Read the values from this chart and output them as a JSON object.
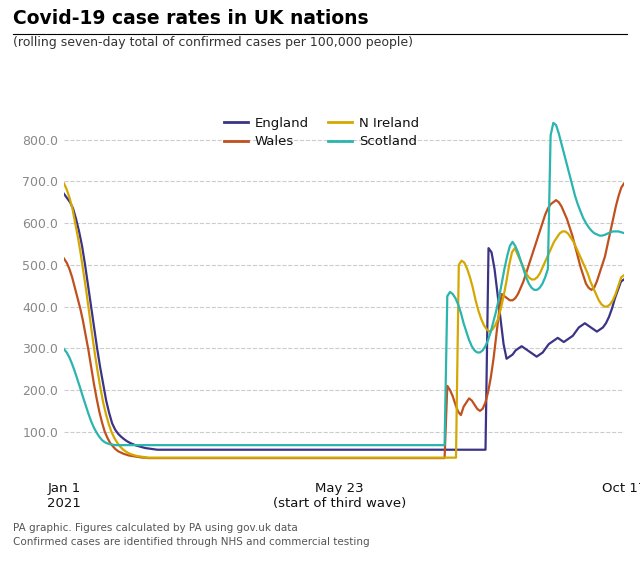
{
  "title": "Covid-19 case rates in UK nations",
  "subtitle": "(rolling seven-day total of confirmed cases per 100,000 people)",
  "footnote1": "PA graphic. Figures calculated by PA using gov.uk data",
  "footnote2": "Confirmed cases are identified through NHS and commercial testing",
  "ylim": [
    0,
    870
  ],
  "yticks": [
    100.0,
    200.0,
    300.0,
    400.0,
    500.0,
    600.0,
    700.0,
    800.0
  ],
  "colors": {
    "England": "#3b3486",
    "Wales": "#c0511e",
    "N Ireland": "#d4a800",
    "Scotland": "#2ab5ae"
  },
  "background": "#ffffff",
  "grid_color": "#cccccc",
  "england": [
    670,
    660,
    650,
    635,
    610,
    580,
    545,
    500,
    450,
    400,
    350,
    300,
    255,
    215,
    175,
    145,
    120,
    105,
    95,
    88,
    82,
    77,
    73,
    70,
    67,
    65,
    63,
    61,
    60,
    59,
    58,
    57,
    57,
    57,
    57,
    57,
    57,
    57,
    57,
    57,
    57,
    57,
    57,
    57,
    57,
    57,
    57,
    57,
    57,
    57,
    57,
    57,
    57,
    57,
    57,
    57,
    57,
    57,
    57,
    57,
    57,
    57,
    57,
    57,
    57,
    57,
    57,
    57,
    57,
    57,
    57,
    57,
    57,
    57,
    57,
    57,
    57,
    57,
    57,
    57,
    57,
    57,
    57,
    57,
    57,
    57,
    57,
    57,
    57,
    57,
    57,
    57,
    57,
    57,
    57,
    57,
    57,
    57,
    57,
    57,
    57,
    57,
    57,
    57,
    57,
    57,
    57,
    57,
    57,
    57,
    57,
    57,
    57,
    57,
    57,
    57,
    57,
    57,
    57,
    57,
    57,
    57,
    57,
    57,
    57,
    57,
    57,
    57,
    57,
    57,
    57,
    57,
    57,
    57,
    57,
    57,
    57,
    57,
    57,
    57,
    57,
    540,
    530,
    490,
    430,
    370,
    310,
    275,
    280,
    285,
    295,
    300,
    305,
    300,
    295,
    290,
    285,
    280,
    285,
    290,
    300,
    310,
    315,
    320,
    325,
    320,
    315,
    320,
    325,
    330,
    340,
    350,
    355,
    360,
    355,
    350,
    345,
    340,
    345,
    350,
    360,
    375,
    395,
    420,
    440,
    460,
    465
  ],
  "wales": [
    515,
    505,
    490,
    470,
    445,
    420,
    395,
    365,
    330,
    295,
    255,
    215,
    180,
    148,
    122,
    100,
    85,
    73,
    65,
    58,
    53,
    50,
    47,
    45,
    43,
    42,
    41,
    40,
    39,
    38,
    38,
    37,
    37,
    37,
    37,
    37,
    37,
    37,
    37,
    37,
    37,
    37,
    37,
    37,
    37,
    37,
    37,
    37,
    37,
    37,
    37,
    37,
    37,
    37,
    37,
    37,
    37,
    37,
    37,
    37,
    37,
    37,
    37,
    37,
    37,
    37,
    37,
    37,
    37,
    37,
    37,
    37,
    37,
    37,
    37,
    37,
    37,
    37,
    37,
    37,
    37,
    37,
    37,
    37,
    37,
    37,
    37,
    37,
    37,
    37,
    37,
    37,
    37,
    37,
    37,
    37,
    37,
    37,
    37,
    37,
    37,
    37,
    37,
    37,
    37,
    37,
    37,
    37,
    37,
    37,
    37,
    37,
    37,
    37,
    37,
    37,
    37,
    37,
    37,
    37,
    37,
    37,
    37,
    37,
    37,
    37,
    37,
    37,
    37,
    37,
    37,
    37,
    37,
    37,
    37,
    37,
    37,
    37,
    37,
    37,
    37,
    210,
    200,
    185,
    165,
    148,
    140,
    160,
    170,
    180,
    175,
    165,
    155,
    150,
    155,
    170,
    195,
    230,
    275,
    330,
    385,
    430,
    425,
    420,
    415,
    415,
    420,
    430,
    445,
    460,
    480,
    500,
    520,
    540,
    560,
    580,
    600,
    620,
    635,
    645,
    650,
    655,
    650,
    640,
    625,
    610,
    590,
    570,
    545,
    520,
    495,
    475,
    455,
    445,
    440,
    445,
    460,
    480,
    500,
    520,
    550,
    580,
    610,
    640,
    665,
    685,
    695
  ],
  "nireland": [
    695,
    680,
    660,
    635,
    600,
    565,
    525,
    480,
    435,
    385,
    335,
    288,
    245,
    205,
    170,
    142,
    118,
    99,
    85,
    74,
    65,
    58,
    53,
    49,
    46,
    44,
    42,
    41,
    40,
    39,
    38,
    38,
    38,
    38,
    38,
    38,
    38,
    38,
    38,
    38,
    38,
    38,
    38,
    38,
    38,
    38,
    38,
    38,
    38,
    38,
    38,
    38,
    38,
    38,
    38,
    38,
    38,
    38,
    38,
    38,
    38,
    38,
    38,
    38,
    38,
    38,
    38,
    38,
    38,
    38,
    38,
    38,
    38,
    38,
    38,
    38,
    38,
    38,
    38,
    38,
    38,
    38,
    38,
    38,
    38,
    38,
    38,
    38,
    38,
    38,
    38,
    38,
    38,
    38,
    38,
    38,
    38,
    38,
    38,
    38,
    38,
    38,
    38,
    38,
    38,
    38,
    38,
    38,
    38,
    38,
    38,
    38,
    38,
    38,
    38,
    38,
    38,
    38,
    38,
    38,
    38,
    38,
    38,
    38,
    38,
    38,
    38,
    38,
    38,
    38,
    38,
    38,
    38,
    38,
    38,
    38,
    38,
    38,
    38,
    38,
    38,
    500,
    510,
    505,
    490,
    470,
    445,
    415,
    390,
    370,
    355,
    345,
    340,
    345,
    355,
    370,
    395,
    425,
    460,
    500,
    530,
    540,
    525,
    510,
    495,
    480,
    470,
    465,
    465,
    470,
    480,
    495,
    510,
    525,
    540,
    555,
    565,
    575,
    580,
    580,
    575,
    565,
    555,
    540,
    525,
    510,
    495,
    480,
    460,
    445,
    430,
    415,
    405,
    400,
    400,
    405,
    415,
    430,
    450,
    470,
    475
  ],
  "scotland": [
    298,
    290,
    278,
    262,
    244,
    224,
    204,
    183,
    163,
    143,
    125,
    110,
    98,
    88,
    80,
    75,
    72,
    70,
    69,
    68,
    68,
    68,
    68,
    68,
    68,
    68,
    68,
    68,
    68,
    68,
    68,
    68,
    68,
    68,
    68,
    68,
    68,
    68,
    68,
    68,
    68,
    68,
    68,
    68,
    68,
    68,
    68,
    68,
    68,
    68,
    68,
    68,
    68,
    68,
    68,
    68,
    68,
    68,
    68,
    68,
    68,
    68,
    68,
    68,
    68,
    68,
    68,
    68,
    68,
    68,
    68,
    68,
    68,
    68,
    68,
    68,
    68,
    68,
    68,
    68,
    68,
    68,
    68,
    68,
    68,
    68,
    68,
    68,
    68,
    68,
    68,
    68,
    68,
    68,
    68,
    68,
    68,
    68,
    68,
    68,
    68,
    68,
    68,
    68,
    68,
    68,
    68,
    68,
    68,
    68,
    68,
    68,
    68,
    68,
    68,
    68,
    68,
    68,
    68,
    68,
    68,
    68,
    68,
    68,
    68,
    68,
    68,
    68,
    68,
    68,
    68,
    68,
    68,
    68,
    68,
    68,
    68,
    68,
    68,
    68,
    68,
    425,
    435,
    430,
    420,
    405,
    385,
    360,
    340,
    320,
    305,
    295,
    290,
    290,
    295,
    305,
    320,
    340,
    365,
    390,
    420,
    455,
    490,
    520,
    545,
    555,
    545,
    530,
    510,
    490,
    470,
    455,
    445,
    440,
    440,
    445,
    455,
    470,
    490,
    810,
    840,
    835,
    815,
    790,
    765,
    740,
    715,
    690,
    665,
    645,
    628,
    612,
    600,
    590,
    582,
    576,
    573,
    570,
    570,
    572,
    575,
    578,
    580,
    580,
    580,
    578,
    576
  ]
}
